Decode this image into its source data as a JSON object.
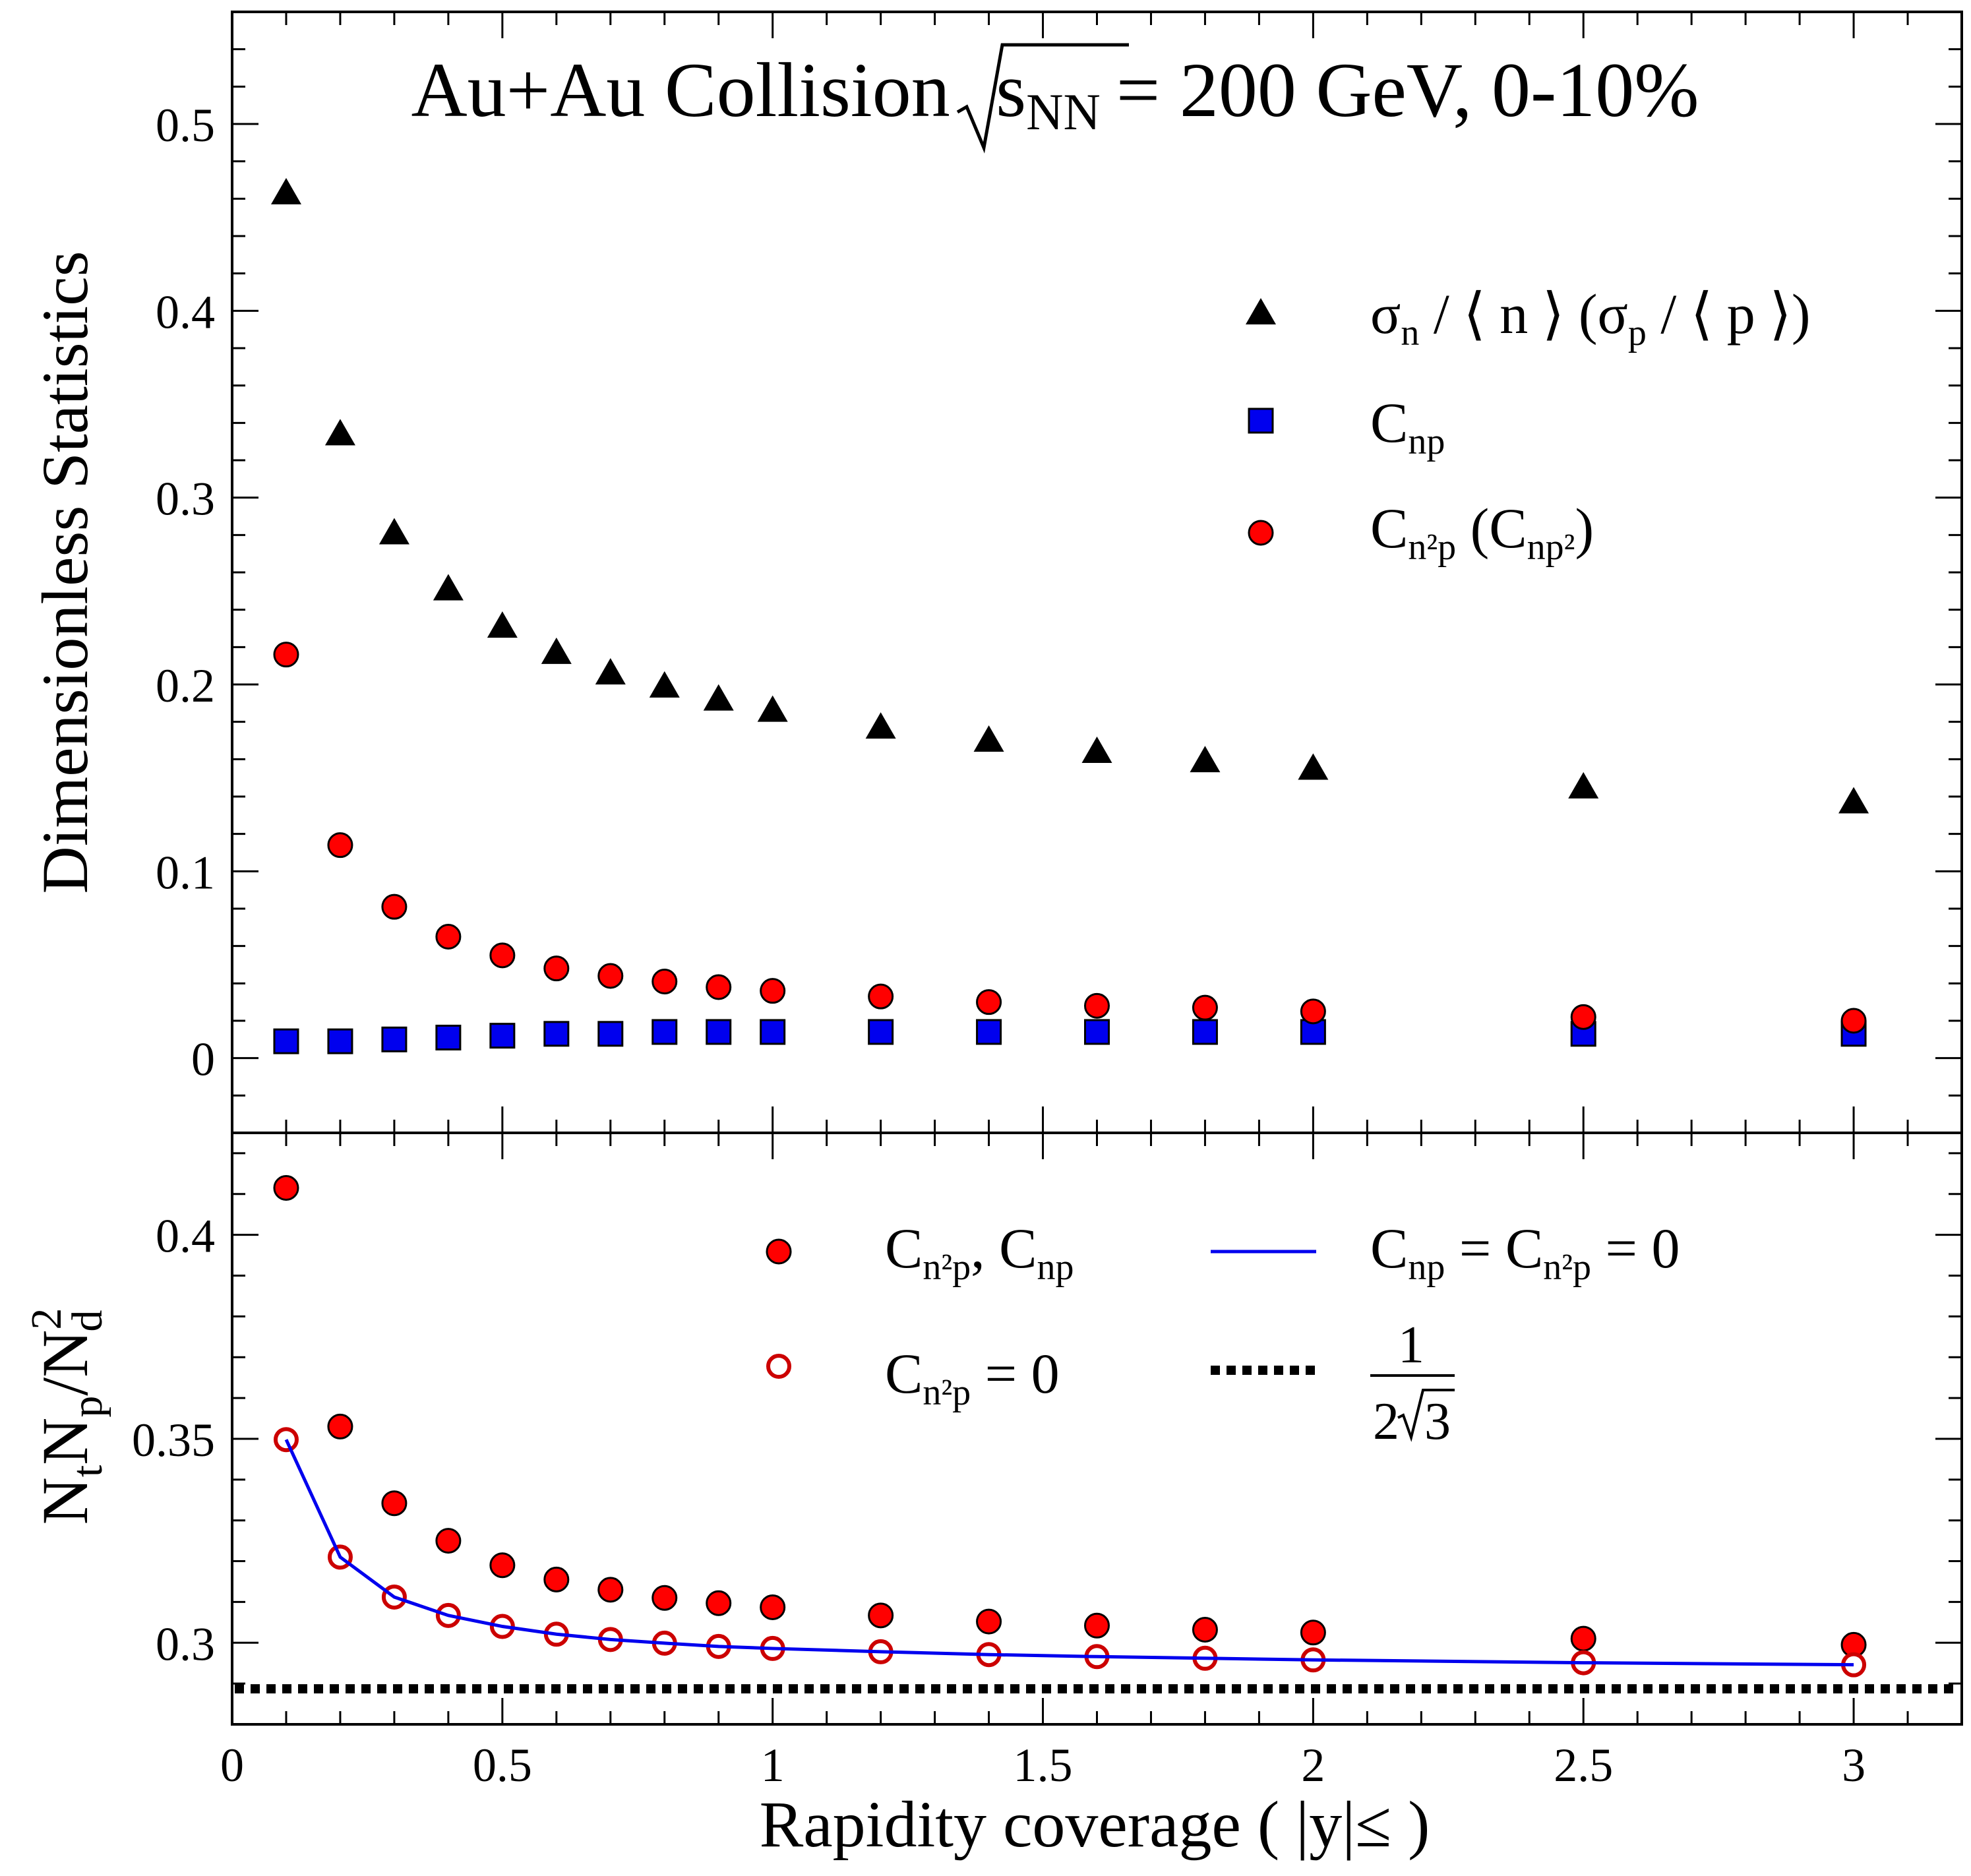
{
  "chart_data": [
    {
      "type": "scatter",
      "panel": "top",
      "title": {
        "main": "Au+Au Collision",
        "sqrt_s": "s",
        "sqrt_sub": "NN",
        "energy": "= 200 GeV, 0-10%"
      },
      "ylabel": "Dimensionless Statistics",
      "xlim": [
        0,
        3.2
      ],
      "ylim": [
        -0.04,
        0.56
      ],
      "x_ticks": [
        0,
        0.5,
        1,
        1.5,
        2,
        2.5,
        3
      ],
      "y_ticks": [
        0,
        0.1,
        0.2,
        0.3,
        0.4,
        0.5
      ],
      "y_tick_labels": [
        "0",
        "0.1",
        "0.2",
        "0.3",
        "0.4",
        "0.5"
      ],
      "grid": false,
      "legend_position": "top-right",
      "x": [
        0.1,
        0.2,
        0.3,
        0.4,
        0.5,
        0.6,
        0.7,
        0.8,
        0.9,
        1.0,
        1.2,
        1.4,
        1.6,
        1.8,
        2.0,
        2.5,
        3.0
      ],
      "series": [
        {
          "name": "σn / ⟨ n ⟩ (σp / ⟨ p ⟩)",
          "marker": "triangle",
          "color": "#000000",
          "values": [
            0.463,
            0.334,
            0.281,
            0.251,
            0.231,
            0.217,
            0.206,
            0.199,
            0.192,
            0.186,
            0.177,
            0.17,
            0.164,
            0.159,
            0.155,
            0.145,
            0.137
          ]
        },
        {
          "name": "Cnp",
          "marker": "square",
          "color": "#0000ee",
          "values": [
            0.009,
            0.009,
            0.01,
            0.011,
            0.012,
            0.013,
            0.013,
            0.014,
            0.014,
            0.014,
            0.014,
            0.014,
            0.014,
            0.014,
            0.014,
            0.013,
            0.013
          ]
        },
        {
          "name": "Cn²p (Cnp²)",
          "marker": "circle",
          "color": "#ff0000",
          "values": [
            0.216,
            0.114,
            0.081,
            0.065,
            0.055,
            0.048,
            0.044,
            0.041,
            0.038,
            0.036,
            0.033,
            0.03,
            0.028,
            0.027,
            0.025,
            0.022,
            0.02
          ]
        }
      ],
      "legend": [
        {
          "marker": "triangle",
          "color": "#000000",
          "t1": "σ",
          "t1s": "n",
          "t2": " / ⟨ n ⟩  (σ",
          "t2s": "p",
          "t3": " / ⟨ p ⟩)"
        },
        {
          "marker": "square",
          "color": "#0000ee",
          "t1": "C",
          "t1s": "np"
        },
        {
          "marker": "circle",
          "color": "#ff0000",
          "t1": "C",
          "t1s": "n²p",
          "t2": "  (C",
          "t2s": "np²",
          "t3": ")"
        }
      ]
    },
    {
      "type": "scatter",
      "panel": "bottom",
      "xlabel": "Rapidity coverage ( |y|≤ )",
      "ylabel": {
        "N1": "N",
        "s1": "t",
        "N2": "N",
        "s2": "p",
        "rest": "/N",
        "sup": "2",
        "sub": "d"
      },
      "xlim": [
        0,
        3.2
      ],
      "ylim": [
        0.28,
        0.425
      ],
      "x_ticks": [
        0,
        0.5,
        1,
        1.5,
        2,
        2.5,
        3
      ],
      "x_tick_labels": [
        "0",
        "0.5",
        "1",
        "1.5",
        "2",
        "2.5",
        "3"
      ],
      "y_ticks": [
        0.3,
        0.35,
        0.4
      ],
      "y_tick_labels": [
        "0.3",
        "0.35",
        "0.4"
      ],
      "grid": false,
      "legend_position": "top-right",
      "x": [
        0.1,
        0.2,
        0.3,
        0.4,
        0.5,
        0.6,
        0.7,
        0.8,
        0.9,
        1.0,
        1.2,
        1.4,
        1.6,
        1.8,
        2.0,
        2.5,
        3.0
      ],
      "series": [
        {
          "name": "Cn²p, Cnp",
          "marker": "circle-filled",
          "color": "#ff0000",
          "values": [
            0.4115,
            0.353,
            0.3342,
            0.325,
            0.319,
            0.3155,
            0.313,
            0.311,
            0.3097,
            0.3087,
            0.3067,
            0.3052,
            0.3042,
            0.3032,
            0.3025,
            0.301,
            0.2995
          ]
        },
        {
          "name": "Cn²p = 0",
          "marker": "circle-open",
          "color": "#ff0000",
          "values": [
            0.3498,
            0.321,
            0.3112,
            0.3067,
            0.304,
            0.3021,
            0.3008,
            0.2999,
            0.2991,
            0.2986,
            0.2978,
            0.2971,
            0.2966,
            0.2962,
            0.2958,
            0.2951,
            0.2946
          ]
        },
        {
          "name": "Cnp = Cn²p = 0",
          "marker": "line",
          "color": "#0000ee",
          "x": [
            0.1,
            0.2,
            0.3,
            0.4,
            0.5,
            0.6,
            0.7,
            0.8,
            0.9,
            1.0,
            1.2,
            1.4,
            1.6,
            1.8,
            2.0,
            2.5,
            3.0
          ],
          "values": [
            0.3498,
            0.321,
            0.3112,
            0.3067,
            0.304,
            0.3021,
            0.3008,
            0.2999,
            0.2991,
            0.2986,
            0.2978,
            0.2971,
            0.2966,
            0.2962,
            0.2958,
            0.2951,
            0.2946
          ]
        },
        {
          "name": "1 / 2√3",
          "marker": "dotted-line",
          "color": "#000000",
          "y": 0.2887
        }
      ],
      "legend": [
        {
          "marker": "circle-filled",
          "color": "#ff0000",
          "t1": "C",
          "t1s": "n²p",
          "t2": ", C",
          "t2s": "np"
        },
        {
          "marker": "line",
          "color": "#0000ee",
          "t1": "C",
          "t1s": "np",
          "t2": " = C",
          "t2s": "n²p",
          "t3": " = 0"
        },
        {
          "marker": "circle-open",
          "color": "#ff0000",
          "t1": "C",
          "t1s": "n²p",
          "t2": " = 0"
        },
        {
          "marker": "dotted-line",
          "color": "#000000",
          "num": "1",
          "den_a": "2",
          "den_b": "3"
        }
      ]
    }
  ]
}
